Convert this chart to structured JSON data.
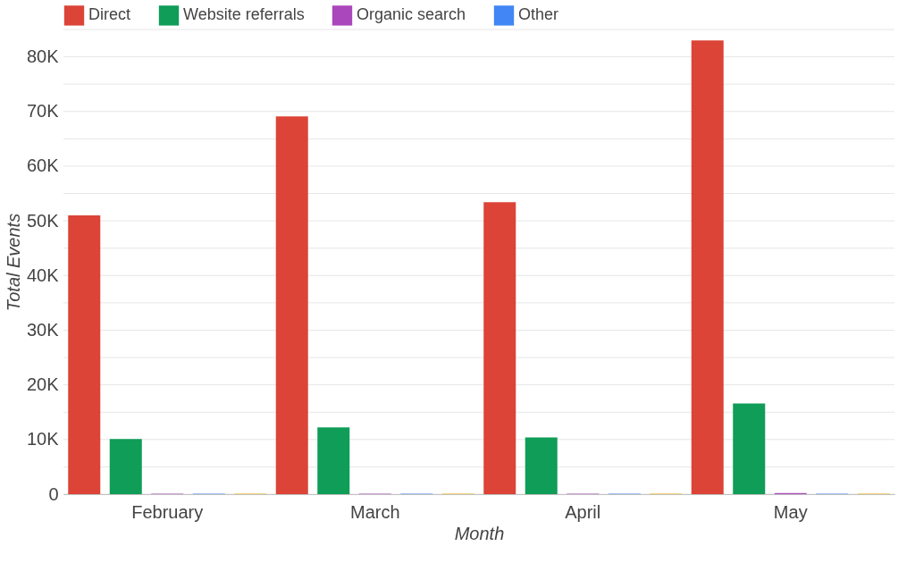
{
  "chart_data": {
    "type": "bar",
    "xlabel": "Month",
    "ylabel": "Total Events",
    "categories": [
      "February",
      "March",
      "April",
      "May"
    ],
    "series": [
      {
        "name": "Direct",
        "color": "#db4437",
        "values": [
          51000,
          69100,
          53400,
          83000
        ]
      },
      {
        "name": "Website referrals",
        "color": "#0f9d58",
        "values": [
          10100,
          12200,
          10400,
          16600
        ]
      },
      {
        "name": "Organic search",
        "color": "#ab47bc",
        "values": [
          100,
          100,
          100,
          200
        ]
      },
      {
        "name": "Other",
        "color": "#4285f4",
        "values": [
          100,
          100,
          100,
          100
        ]
      },
      {
        "color": "#f4b400",
        "values": [
          100,
          100,
          100,
          100
        ]
      }
    ],
    "ylim": [
      0,
      85000
    ],
    "yticks": [
      0,
      {
        "value": 5000,
        "label": null
      },
      {
        "value": 10000,
        "label": "10K"
      },
      {
        "value": 15000,
        "label": null
      },
      {
        "value": 20000,
        "label": "20K"
      },
      {
        "value": 25000,
        "label": null
      },
      {
        "value": 30000,
        "label": "30K"
      },
      {
        "value": 35000,
        "label": null
      },
      {
        "value": 40000,
        "label": "40K"
      },
      {
        "value": 45000,
        "label": null
      },
      {
        "value": 50000,
        "label": "50K"
      },
      {
        "value": 55000,
        "label": null
      },
      {
        "value": 60000,
        "label": "60K"
      },
      {
        "value": 65000,
        "label": null
      },
      {
        "value": 70000,
        "label": "70K"
      },
      {
        "value": 75000,
        "label": null
      },
      {
        "value": 80000,
        "label": "80K"
      },
      {
        "value": 85000,
        "label": null
      }
    ],
    "grid": "y",
    "legend": "top"
  }
}
